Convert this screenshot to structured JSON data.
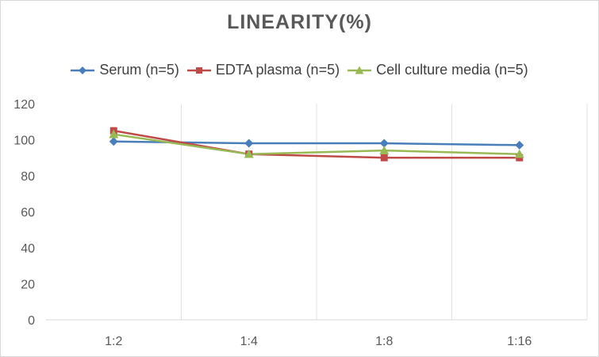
{
  "chart_data": {
    "type": "line",
    "title": "LINEARITY(%)",
    "categories": [
      "1:2",
      "1:4",
      "1:8",
      "1:16"
    ],
    "ylim": [
      0,
      120
    ],
    "yticks": [
      0,
      20,
      40,
      60,
      80,
      100,
      120
    ],
    "grid": "vertical",
    "legend_position": "top",
    "series": [
      {
        "name": "Serum (n=5)",
        "values": [
          99,
          98,
          98,
          97
        ],
        "color": "#4a7ebb",
        "marker": "diamond"
      },
      {
        "name": "EDTA plasma (n=5)",
        "values": [
          105,
          92,
          90,
          90
        ],
        "color": "#be4b48",
        "marker": "square"
      },
      {
        "name": "Cell culture media (n=5)",
        "values": [
          103,
          92,
          94,
          92
        ],
        "color": "#98b954",
        "marker": "triangle"
      }
    ]
  }
}
